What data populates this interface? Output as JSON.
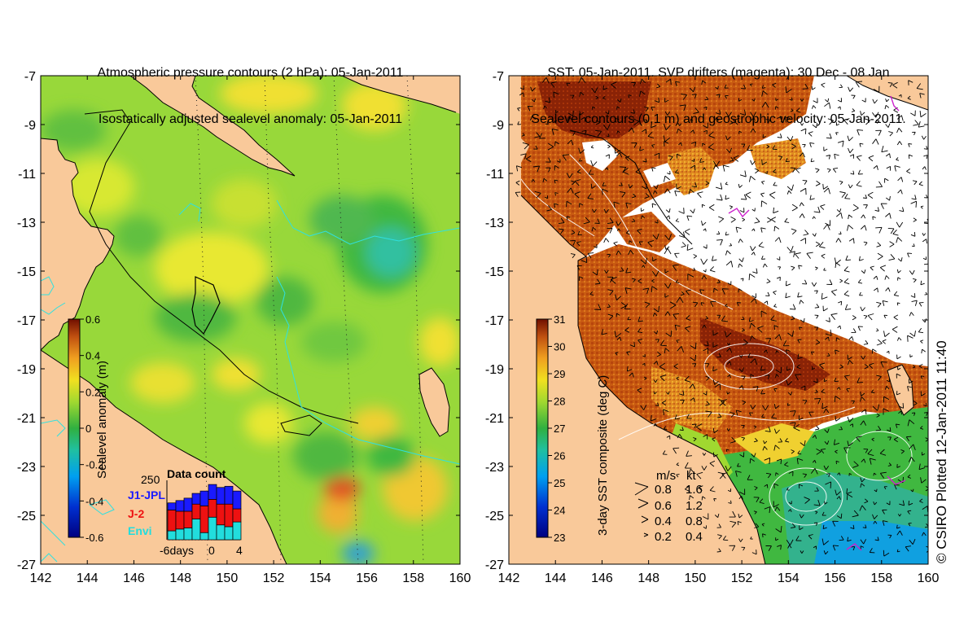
{
  "left_panel": {
    "title_line1": "Atmospheric pressure contours (2 hPa): 05-Jan-2011",
    "title_line2": "Isostatically adjusted sealevel anomaly: 05-Jan-2011",
    "colorbar_label": "Sealevel anomaly (m)",
    "colorbar_ticks": [
      "0.6",
      "0.4",
      "0.2",
      "0",
      "-0.2",
      "-0.4",
      "-0.6"
    ],
    "data_count": {
      "title": "Data count",
      "ymax_label": "250",
      "legend": [
        {
          "name": "J1-JPL",
          "color": "#1a1aff"
        },
        {
          "name": "J-2",
          "color": "#ee1111"
        },
        {
          "name": "Envi",
          "color": "#22dddd"
        }
      ],
      "x_ticks": [
        "-6days",
        "0",
        "4"
      ],
      "bars": [
        {
          "envi": 0.15,
          "j2": 0.35,
          "j1": 0.12
        },
        {
          "envi": 0.18,
          "j2": 0.3,
          "j1": 0.18
        },
        {
          "envi": 0.2,
          "j2": 0.28,
          "j1": 0.22
        },
        {
          "envi": 0.35,
          "j2": 0.25,
          "j1": 0.18
        },
        {
          "envi": 0.12,
          "j2": 0.45,
          "j1": 0.25
        },
        {
          "envi": 0.38,
          "j2": 0.3,
          "j1": 0.25
        },
        {
          "envi": 0.25,
          "j2": 0.35,
          "j1": 0.28
        },
        {
          "envi": 0.22,
          "j2": 0.38,
          "j1": 0.3
        },
        {
          "envi": 0.3,
          "j2": 0.22,
          "j1": 0.3
        }
      ]
    }
  },
  "right_panel": {
    "title_line1": "SST: 05-Jan-2011. SVP drifters (magenta): 30 Dec - 08 Jan",
    "title_line2": "Sealevel contours (0.1 m) and geostrophic velocity: 05-Jan-2011.",
    "colorbar_label": "3-day SST composite (deg C)",
    "colorbar_ticks": [
      "31",
      "30",
      "29",
      "28",
      "27",
      "26",
      "25",
      "24",
      "23"
    ],
    "velocity_legend": {
      "header_ms": "m/s",
      "header_kt": "kt",
      "rows": [
        {
          "ms": "0.8",
          "kt": "1.6"
        },
        {
          "ms": "0.6",
          "kt": "1.2"
        },
        {
          "ms": "0.4",
          "kt": "0.8"
        },
        {
          "ms": "0.2",
          "kt": "0.4"
        }
      ]
    }
  },
  "axes": {
    "lat_ticks": [
      "-7",
      "-9",
      "-11",
      "-13",
      "-15",
      "-17",
      "-19",
      "-21",
      "-23",
      "-25",
      "-27"
    ],
    "lon_ticks": [
      "142",
      "144",
      "146",
      "148",
      "150",
      "152",
      "154",
      "156",
      "158",
      "160"
    ]
  },
  "copyright": "© CSIRO Plotted 12-Jan-2011 11:40",
  "colors": {
    "land": "#f9c99a",
    "white_cloud": "#ffffff"
  }
}
